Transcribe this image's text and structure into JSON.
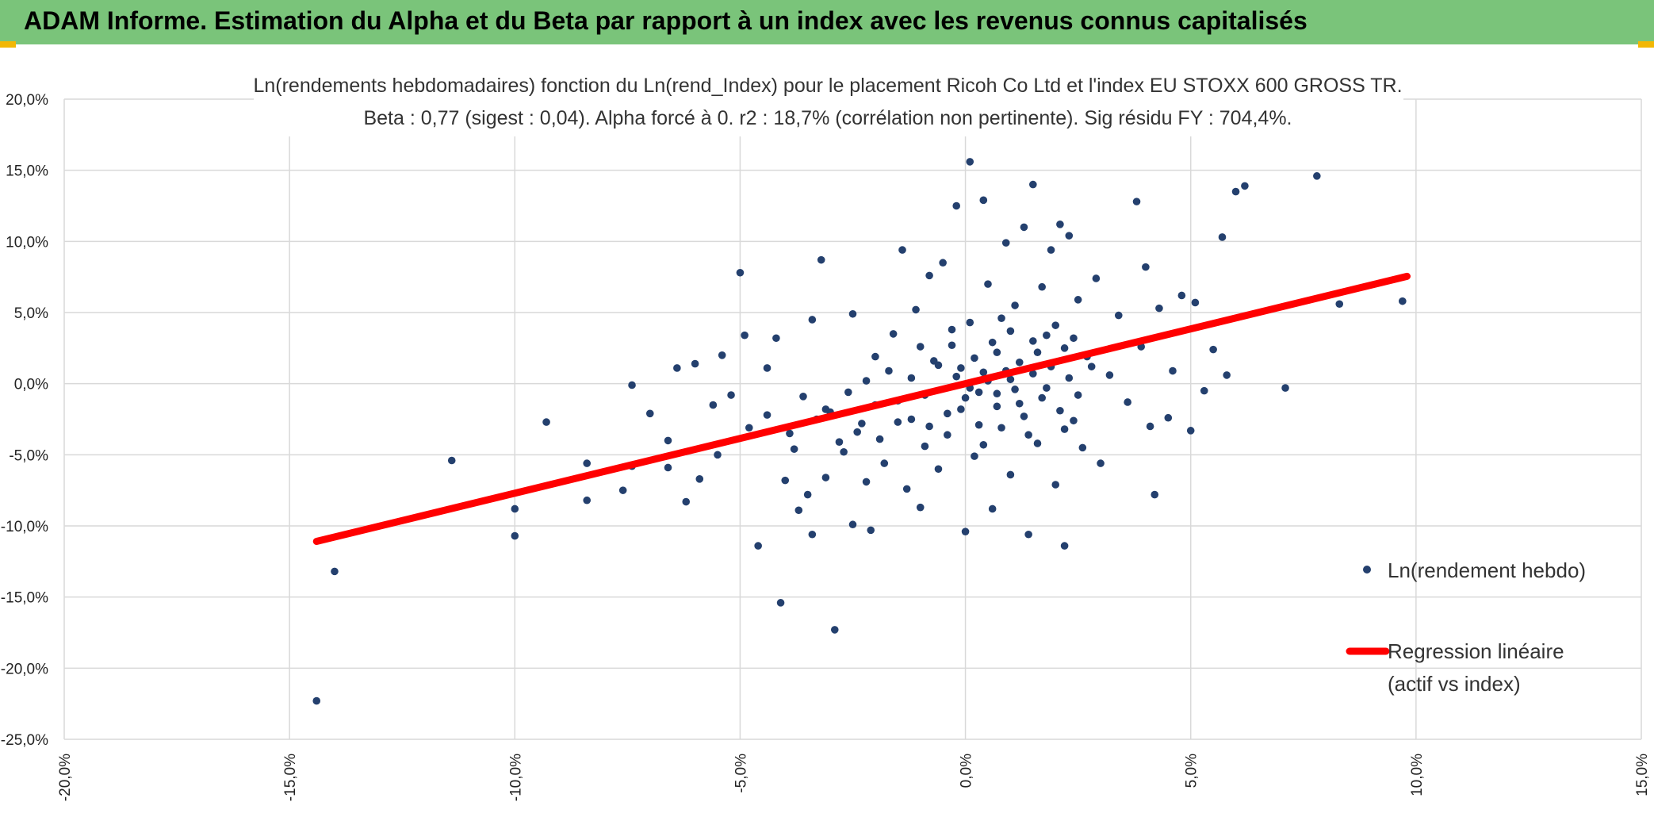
{
  "header": {
    "title": "ADAM Informe. Estimation du Alpha et du Beta par rapport à un index avec les revenus connus capitalisés",
    "background": "#7ac47a"
  },
  "chart_data": {
    "type": "scatter",
    "title_line1": "Ln(rendements hebdomadaires) fonction du Ln(rend_Index) pour le placement Ricoh Co Ltd et l'index EU STOXX 600 GROSS TR.",
    "title_line2": "Beta : 0,77 (sigest : 0,04). Alpha forcé à 0. r2 : 18,7% (corrélation non pertinente). Sig résidu FY : 704,4%.",
    "xlim": [
      -20,
      15
    ],
    "ylim": [
      -25,
      20
    ],
    "x_ticks": [
      -20,
      -15,
      -10,
      -5,
      0,
      5,
      10,
      15
    ],
    "y_ticks": [
      20,
      15,
      10,
      5,
      0,
      -5,
      -10,
      -15,
      -20,
      -25
    ],
    "x_tick_labels": [
      "-20,0%",
      "-15,0%",
      "-10,0%",
      "-5,0%",
      "0,0%",
      "5,0%",
      "10,0%",
      "15,0%"
    ],
    "y_tick_labels": [
      "20,0%",
      "15,0%",
      "10,0%",
      "5,0%",
      "0,0%",
      "-5,0%",
      "-10,0%",
      "-15,0%",
      "-20,0%",
      "-25,0%"
    ],
    "grid": true,
    "legend_position": "right",
    "series": [
      {
        "name": "Ln(rendement hebdo)",
        "color": "#24406e",
        "points": [
          [
            -14.4,
            -22.3
          ],
          [
            -14.0,
            -13.2
          ],
          [
            -11.4,
            -5.4
          ],
          [
            -10.0,
            -8.8
          ],
          [
            -10.0,
            -10.7
          ],
          [
            -9.3,
            -2.7
          ],
          [
            -8.4,
            -5.6
          ],
          [
            -8.4,
            -8.2
          ],
          [
            -7.6,
            -7.5
          ],
          [
            -7.4,
            -5.8
          ],
          [
            -7.4,
            -0.1
          ],
          [
            -7.0,
            -2.1
          ],
          [
            -6.6,
            -4.0
          ],
          [
            -6.6,
            -5.9
          ],
          [
            -6.4,
            1.1
          ],
          [
            -6.2,
            -8.3
          ],
          [
            -6.0,
            1.4
          ],
          [
            -5.9,
            -6.7
          ],
          [
            -5.6,
            -1.5
          ],
          [
            -5.5,
            -5.0
          ],
          [
            -5.4,
            2.0
          ],
          [
            -5.2,
            -0.8
          ],
          [
            -5.0,
            7.8
          ],
          [
            -4.9,
            3.4
          ],
          [
            -4.8,
            -3.1
          ],
          [
            -4.6,
            -11.4
          ],
          [
            -4.4,
            1.1
          ],
          [
            -4.4,
            -2.2
          ],
          [
            -4.2,
            3.2
          ],
          [
            -4.1,
            -15.4
          ],
          [
            -4.0,
            -6.8
          ],
          [
            -3.9,
            -3.5
          ],
          [
            -3.7,
            -8.9
          ],
          [
            -3.5,
            -7.8
          ],
          [
            -3.4,
            4.5
          ],
          [
            -3.4,
            -10.6
          ],
          [
            -3.2,
            8.7
          ],
          [
            -3.1,
            -6.6
          ],
          [
            -3.0,
            -2.0
          ],
          [
            -2.9,
            -17.3
          ],
          [
            -2.7,
            -4.8
          ],
          [
            -2.5,
            4.9
          ],
          [
            -2.5,
            -9.9
          ],
          [
            -2.3,
            -2.8
          ],
          [
            -2.2,
            -6.9
          ],
          [
            -2.1,
            -10.3
          ],
          [
            -2.0,
            1.9
          ],
          [
            -1.9,
            -3.9
          ],
          [
            -1.8,
            -5.6
          ],
          [
            -1.6,
            3.5
          ],
          [
            -1.5,
            -1.2
          ],
          [
            -1.4,
            9.4
          ],
          [
            -1.3,
            -7.4
          ],
          [
            -1.2,
            -2.5
          ],
          [
            -1.1,
            5.2
          ],
          [
            -1.0,
            -8.7
          ],
          [
            -0.9,
            -4.4
          ],
          [
            -0.8,
            7.6
          ],
          [
            -0.7,
            1.6
          ],
          [
            -0.6,
            -6.0
          ],
          [
            -0.5,
            8.5
          ],
          [
            -0.4,
            -3.6
          ],
          [
            -0.3,
            2.7
          ],
          [
            -0.2,
            12.5
          ],
          [
            -0.1,
            -1.8
          ],
          [
            0.0,
            -10.4
          ],
          [
            0.1,
            15.6
          ],
          [
            0.1,
            4.3
          ],
          [
            0.2,
            -5.1
          ],
          [
            0.3,
            -0.6
          ],
          [
            0.4,
            12.9
          ],
          [
            0.5,
            7.0
          ],
          [
            0.6,
            -8.8
          ],
          [
            0.7,
            2.2
          ],
          [
            0.8,
            -3.1
          ],
          [
            0.9,
            9.9
          ],
          [
            1.0,
            -6.4
          ],
          [
            1.1,
            5.5
          ],
          [
            1.2,
            -1.4
          ],
          [
            1.3,
            11.0
          ],
          [
            1.4,
            -10.6
          ],
          [
            1.5,
            14.0
          ],
          [
            1.5,
            3.0
          ],
          [
            1.6,
            -4.2
          ],
          [
            1.7,
            6.8
          ],
          [
            1.8,
            -0.3
          ],
          [
            1.9,
            9.4
          ],
          [
            2.0,
            -7.1
          ],
          [
            2.1,
            11.2
          ],
          [
            2.2,
            2.5
          ],
          [
            2.2,
            -11.4
          ],
          [
            2.3,
            10.4
          ],
          [
            2.4,
            -2.6
          ],
          [
            2.5,
            5.9
          ],
          [
            2.6,
            -4.5
          ],
          [
            2.8,
            1.2
          ],
          [
            2.9,
            7.4
          ],
          [
            3.0,
            -5.6
          ],
          [
            3.2,
            0.6
          ],
          [
            3.4,
            4.8
          ],
          [
            3.6,
            -1.3
          ],
          [
            3.8,
            12.8
          ],
          [
            3.9,
            2.6
          ],
          [
            4.0,
            8.2
          ],
          [
            4.1,
            -3.0
          ],
          [
            4.2,
            -7.8
          ],
          [
            4.3,
            5.3
          ],
          [
            4.5,
            -2.4
          ],
          [
            4.6,
            0.9
          ],
          [
            4.8,
            6.2
          ],
          [
            5.0,
            -3.3
          ],
          [
            5.1,
            5.7
          ],
          [
            5.3,
            -0.5
          ],
          [
            5.5,
            2.4
          ],
          [
            5.7,
            10.3
          ],
          [
            5.8,
            0.6
          ],
          [
            6.0,
            13.5
          ],
          [
            6.2,
            13.9
          ],
          [
            7.1,
            -0.3
          ],
          [
            7.8,
            14.6
          ],
          [
            8.3,
            5.6
          ],
          [
            9.7,
            5.8
          ],
          [
            -1.2,
            0.4
          ],
          [
            -0.9,
            -0.8
          ],
          [
            -0.6,
            1.3
          ],
          [
            -0.4,
            -2.1
          ],
          [
            -0.2,
            0.5
          ],
          [
            0.0,
            -1.0
          ],
          [
            0.2,
            1.8
          ],
          [
            0.3,
            -2.9
          ],
          [
            0.5,
            0.2
          ],
          [
            0.6,
            2.9
          ],
          [
            0.7,
            -1.6
          ],
          [
            0.9,
            0.9
          ],
          [
            1.0,
            3.7
          ],
          [
            1.1,
            -0.4
          ],
          [
            1.2,
            1.5
          ],
          [
            1.3,
            -2.3
          ],
          [
            1.5,
            0.7
          ],
          [
            1.6,
            2.2
          ],
          [
            1.7,
            -1.0
          ],
          [
            1.9,
            1.2
          ],
          [
            2.0,
            4.1
          ],
          [
            2.1,
            -1.9
          ],
          [
            2.3,
            0.4
          ],
          [
            2.4,
            3.2
          ],
          [
            2.5,
            -0.8
          ],
          [
            2.7,
            1.9
          ],
          [
            -1.5,
            -2.7
          ],
          [
            -1.7,
            0.9
          ],
          [
            -2.0,
            -1.5
          ],
          [
            -2.2,
            0.2
          ],
          [
            -2.4,
            -3.4
          ],
          [
            -2.6,
            -0.6
          ],
          [
            -2.8,
            -4.1
          ],
          [
            -3.1,
            -1.8
          ],
          [
            -3.3,
            -2.5
          ],
          [
            -3.6,
            -0.9
          ],
          [
            -3.8,
            -4.6
          ],
          [
            -1.0,
            2.6
          ],
          [
            -0.8,
            -3.0
          ],
          [
            -0.3,
            3.8
          ],
          [
            0.4,
            -4.3
          ],
          [
            0.8,
            4.6
          ],
          [
            1.4,
            -3.6
          ],
          [
            1.8,
            3.4
          ],
          [
            2.2,
            -3.2
          ],
          [
            -0.1,
            1.1
          ],
          [
            0.1,
            -0.3
          ],
          [
            0.4,
            0.8
          ],
          [
            0.7,
            -0.7
          ],
          [
            1.0,
            0.3
          ]
        ]
      },
      {
        "name": "Regression linéaire",
        "name_line2": "(actif vs index)",
        "color": "#ff0000",
        "slope": 0.77,
        "intercept": 0,
        "x_range": [
          -14.4,
          9.8
        ]
      }
    ]
  }
}
